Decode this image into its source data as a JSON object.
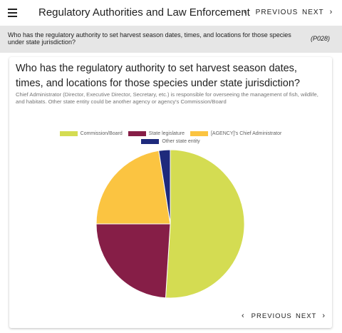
{
  "header": {
    "title": "Regulatory Authorities and Law Enforcement",
    "menu_icon": "menu-icon",
    "prev_label": "PREVIOUS",
    "next_label": "NEXT"
  },
  "question_bar": {
    "text": "Who has the regulatory authority to set harvest season dates, times, and locations for those species under state jurisdiction?",
    "code": "(P028)"
  },
  "card": {
    "title": "Who has the regulatory authority to set harvest season dates, times, and locations for those species under state jurisdiction?",
    "description": "Chief Administrator (Director, Executive Director, Secretary, etc.) is responsible for overseeing the management of fish, wildlife, and habitats. Other state entity could be another agency or agency's Commission/Board",
    "prev_label": "PREVIOUS",
    "next_label": "NEXT"
  },
  "chart_data": {
    "type": "pie",
    "legend_position": "top",
    "slices": [
      {
        "label": "Commission/Board",
        "value": 51,
        "color": "#d4dc52"
      },
      {
        "label": "State legislature",
        "value": 24,
        "color": "#861e47"
      },
      {
        "label": "[AGENCY]'s Chief Administrator",
        "value": 22.5,
        "color": "#fbc441"
      },
      {
        "label": "Other state entity",
        "value": 2.5,
        "color": "#1e2a7c"
      }
    ]
  }
}
